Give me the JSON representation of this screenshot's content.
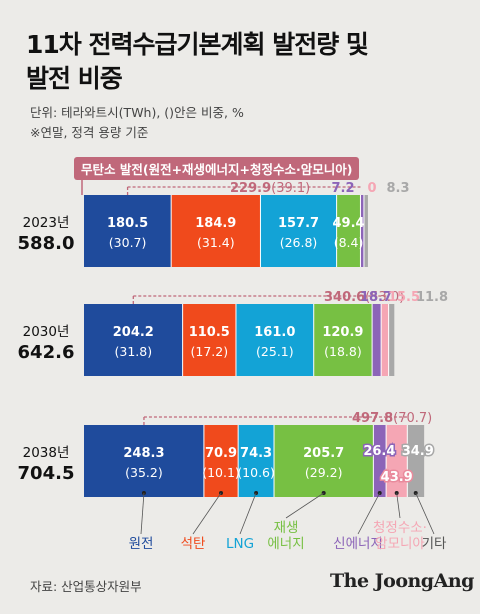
{
  "title_lines": [
    "11차 전력수급기본계획 발전량 및",
    "발전 비중"
  ],
  "unit_note": "단위: 테라와트시(TWh), ()안은 비중, %",
  "basis_note": "※연말, 정격 용량 기준",
  "legend_box": "무탄소 발전(원전+재생에너지+청정수소·암모니아)",
  "source": "자료: 산업통상자원부",
  "brand": "The JoongAng",
  "colors": {
    "nuclear": "#1f4b9c",
    "coal": "#f04a1c",
    "lng": "#13a3d6",
    "renewable": "#77c043",
    "new_energy": "#8c64b8",
    "hydrogen": "#f5a6b4",
    "other": "#a8a8a8",
    "carbon_free": "#c0687a"
  },
  "chart_data": {
    "type": "bar",
    "orientation": "horizontal-stacked",
    "categories": [
      "2023년",
      "2030년",
      "2038년"
    ],
    "totals": [
      588.0,
      642.6,
      704.5
    ],
    "totals_label": [
      "588.0",
      "642.6",
      "704.5"
    ],
    "series": [
      {
        "name": "원전",
        "key": "nuclear",
        "values": [
          180.5,
          204.2,
          248.3
        ],
        "labels": [
          "180.5",
          "204.2",
          "248.3"
        ],
        "shares": [
          "(30.7)",
          "(31.8)",
          "(35.2)"
        ]
      },
      {
        "name": "석탄",
        "key": "coal",
        "values": [
          184.9,
          110.5,
          70.9
        ],
        "labels": [
          "184.9",
          "110.5",
          "70.9"
        ],
        "shares": [
          "(31.4)",
          "(17.2)",
          "(10.1)"
        ]
      },
      {
        "name": "LNG",
        "key": "lng",
        "values": [
          157.7,
          161.0,
          74.3
        ],
        "labels": [
          "157.7",
          "161.0",
          "74.3"
        ],
        "shares": [
          "(26.8)",
          "(25.1)",
          "(10.6)"
        ]
      },
      {
        "name": "재생 에너지",
        "key": "renewable",
        "values": [
          49.4,
          120.9,
          205.7
        ],
        "labels": [
          "49.4",
          "120.9",
          "205.7"
        ],
        "shares": [
          "(8.4)",
          "(18.8)",
          "(29.2)"
        ]
      },
      {
        "name": "신에너지",
        "key": "new_energy",
        "values": [
          7.2,
          18.7,
          26.4
        ],
        "labels": [
          "7.2",
          "18.7",
          "26.4"
        ],
        "shares": []
      },
      {
        "name": "청정수소· 암모니아",
        "key": "hydrogen",
        "values": [
          0,
          15.5,
          43.9
        ],
        "labels": [
          "0",
          "15.5",
          "43.9"
        ],
        "shares": []
      },
      {
        "name": "기타",
        "key": "other",
        "values": [
          8.3,
          11.8,
          34.9
        ],
        "labels": [
          "8.3",
          "11.8",
          "34.9"
        ],
        "shares": []
      }
    ],
    "carbon_free": {
      "values": [
        229.9,
        340.6,
        497.8
      ],
      "labels": [
        "229.9",
        "340.6",
        "497.8"
      ],
      "shares": [
        "(39.1)",
        "(53.0)",
        "(70.7)"
      ]
    },
    "legend_labels": {
      "nuclear": [
        "원전"
      ],
      "coal": [
        "석탄"
      ],
      "lng": [
        "LNG"
      ],
      "renewable": [
        "재생",
        "에너지"
      ],
      "new_energy": [
        "신에너지"
      ],
      "hydrogen": [
        "청정수소·",
        "암모니아"
      ],
      "other": [
        "기타"
      ]
    }
  }
}
